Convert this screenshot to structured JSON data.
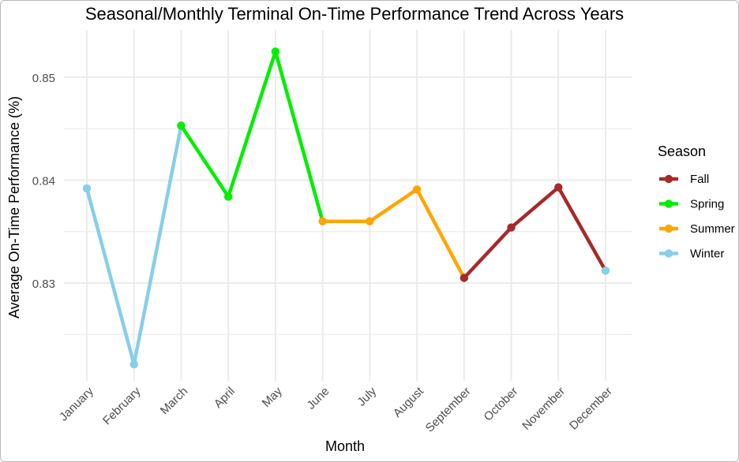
{
  "chart_data": {
    "type": "line",
    "title": "Seasonal/Monthly Terminal On-Time Performance Trend Across Years",
    "xlabel": "Month",
    "ylabel": "Average On-Time Performance (%)",
    "categories": [
      "January",
      "February",
      "March",
      "April",
      "May",
      "June",
      "July",
      "August",
      "September",
      "October",
      "November",
      "December"
    ],
    "yticks": [
      0.83,
      0.84,
      0.85
    ],
    "ytick_labels": [
      "0.83",
      "0.84",
      "0.85"
    ],
    "ylim": [
      0.8205,
      0.8546
    ],
    "grid": true,
    "legend": {
      "title": "Season",
      "placement": "right",
      "entries": [
        "Fall",
        "Spring",
        "Summer",
        "Winter"
      ]
    },
    "colors": {
      "Fall": "#a52a2a",
      "Spring": "#00ee00",
      "Summer": "#ffa500",
      "Winter": "#87ceeb",
      "grid": "#ebebeb",
      "text": "#000000",
      "tick_text": "#4d4d4d"
    },
    "values": [
      0.8392,
      0.8221,
      0.8453,
      0.8384,
      0.8525,
      0.836,
      0.836,
      0.8391,
      0.8305,
      0.8354,
      0.8393,
      0.8312
    ],
    "series": [
      {
        "name": "Winter",
        "x": [
          "January",
          "February",
          "March"
        ],
        "y": [
          0.8392,
          0.8221,
          0.8453
        ]
      },
      {
        "name": "Spring",
        "x": [
          "March",
          "April",
          "May",
          "June"
        ],
        "y": [
          0.8453,
          0.8384,
          0.8525,
          0.836
        ]
      },
      {
        "name": "Summer",
        "x": [
          "June",
          "July",
          "August",
          "September"
        ],
        "y": [
          0.836,
          0.836,
          0.8391,
          0.8305
        ]
      },
      {
        "name": "Fall",
        "x": [
          "September",
          "October",
          "November",
          "December"
        ],
        "y": [
          0.8305,
          0.8354,
          0.8393,
          0.8312
        ]
      }
    ],
    "point_season": [
      "Winter",
      "Winter",
      "Spring",
      "Spring",
      "Spring",
      "Summer",
      "Summer",
      "Summer",
      "Fall",
      "Fall",
      "Fall",
      "Winter"
    ]
  }
}
